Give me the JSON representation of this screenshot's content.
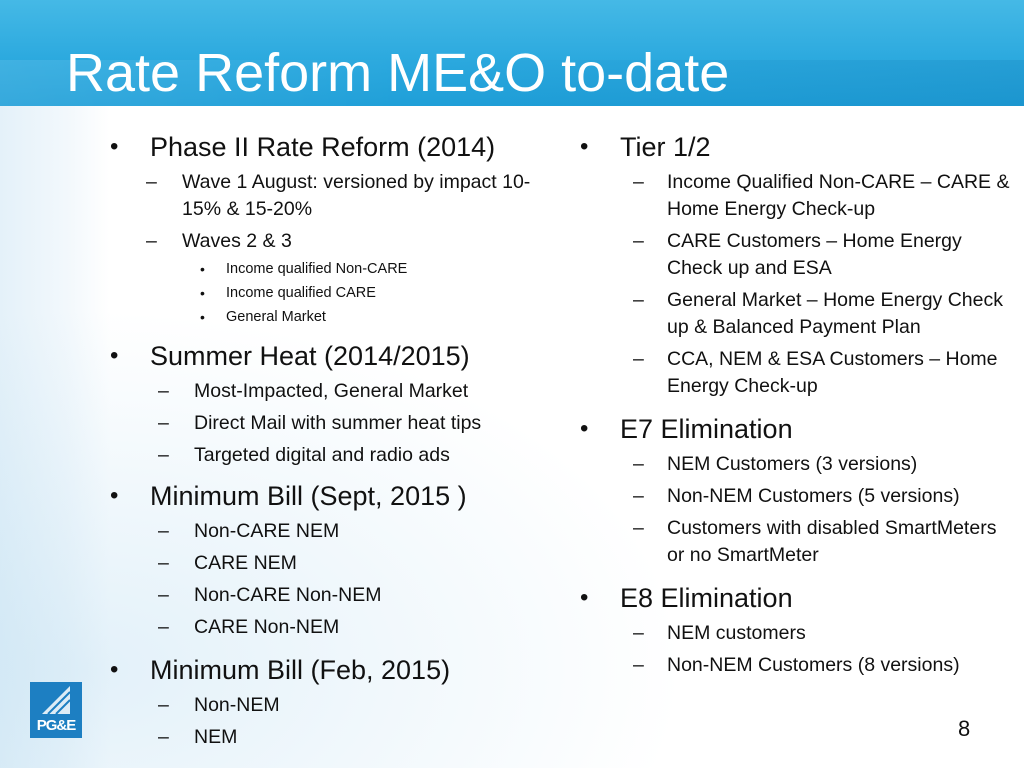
{
  "slide": {
    "title": "Rate Reform ME&O to-date",
    "page_number": "8",
    "logo_text": "PG&E"
  },
  "left": [
    {
      "text": "Phase II Rate Reform (2014)",
      "items": [
        {
          "text": "Wave 1 August:  versioned by impact 10-15% & 15-20%",
          "sub": []
        },
        {
          "text": "Waves 2 & 3",
          "sub": [
            "Income qualified Non-CARE",
            "Income qualified CARE",
            "General Market"
          ]
        }
      ]
    },
    {
      "text": "Summer Heat (2014/2015)",
      "items": [
        {
          "text": "Most-Impacted, General Market",
          "sub": []
        },
        {
          "text": "Direct Mail with summer heat tips",
          "sub": []
        },
        {
          "text": "Targeted digital and radio ads",
          "sub": []
        }
      ]
    },
    {
      "text": "Minimum Bill (Sept, 2015 )",
      "items": [
        {
          "text": "Non-CARE NEM",
          "sub": []
        },
        {
          "text": "CARE NEM",
          "sub": []
        },
        {
          "text": "Non-CARE Non-NEM",
          "sub": []
        },
        {
          "text": "CARE Non-NEM",
          "sub": []
        }
      ]
    },
    {
      "text": "Minimum Bill (Feb, 2015)",
      "items": [
        {
          "text": "Non-NEM",
          "sub": []
        },
        {
          "text": "NEM",
          "sub": []
        }
      ]
    }
  ],
  "right": [
    {
      "text": "Tier 1/2",
      "items": [
        {
          "text": "Income Qualified Non-CARE – CARE & Home Energy Check-up"
        },
        {
          "text": "CARE Customers – Home Energy Check up and ESA"
        },
        {
          "text": "General Market – Home Energy Check up & Balanced Payment Plan"
        },
        {
          "text": "CCA, NEM & ESA Customers – Home Energy Check-up"
        }
      ]
    },
    {
      "text": "E7 Elimination",
      "items": [
        {
          "text": "NEM Customers (3 versions)"
        },
        {
          "text": "Non-NEM Customers (5 versions)"
        },
        {
          "text": "Customers with disabled SmartMeters or no SmartMeter"
        }
      ]
    },
    {
      "text": "E8 Elimination",
      "items": [
        {
          "text": "NEM customers"
        },
        {
          "text": "Non-NEM Customers (8 versions)"
        }
      ]
    }
  ]
}
